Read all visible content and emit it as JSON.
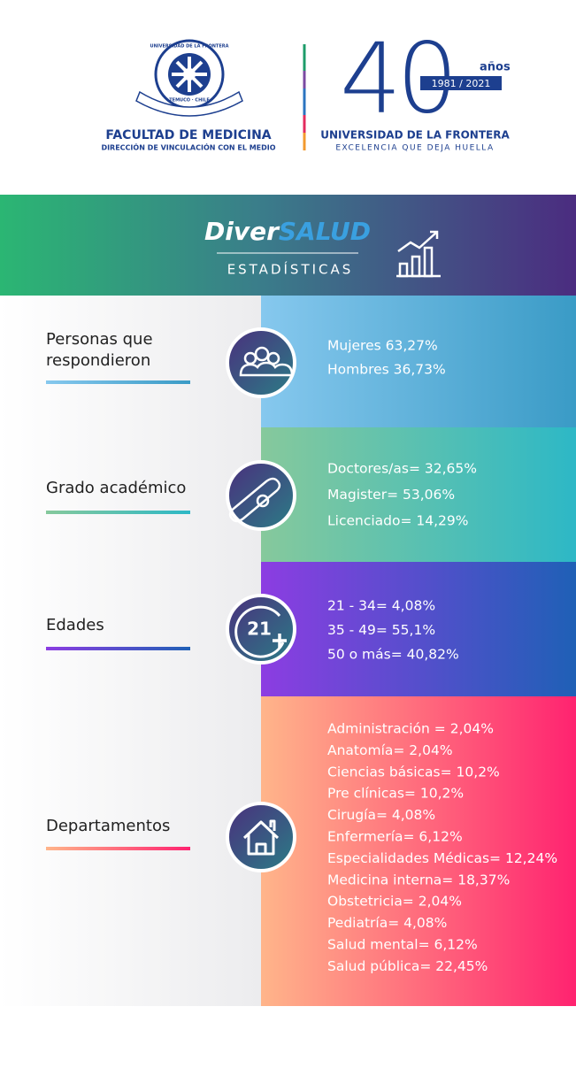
{
  "header": {
    "faculty": "FACULTAD DE MEDICINA",
    "department": "DIRECCIÓN DE VINCULACIÓN CON EL MEDIO",
    "crest_top": "UNIVERSIDAD DE LA FRONTERA",
    "crest_bottom": "TEMUCO · CHILE",
    "anniversary": "40",
    "anniversary_unit": "años",
    "years": "1981 / 2021",
    "university": "UNIVERSIDAD DE LA FRONTERA",
    "motto": "EXCELENCIA QUE DEJA HUELLA"
  },
  "banner": {
    "brand_a": "Diver",
    "brand_b": "SALUD",
    "subtitle": "ESTADÍSTICAS"
  },
  "sections": [
    {
      "label_lines": [
        "Personas que",
        "respondieron"
      ],
      "items": [
        "Mujeres 63,27%",
        "Hombres 36,73%"
      ]
    },
    {
      "label_lines": [
        "Grado académico"
      ],
      "items": [
        "Doctores/as= 32,65%",
        "Magister= 53,06%",
        "Licenciado= 14,29%"
      ]
    },
    {
      "label_lines": [
        "Edades"
      ],
      "icon_text": "21",
      "items": [
        "21 - 34= 4,08%",
        "35 - 49= 55,1%",
        "50 o más= 40,82%"
      ]
    },
    {
      "label_lines": [
        "Departamentos"
      ],
      "items": [
        "Administración = 2,04%",
        "Anatomía= 2,04%",
        "Ciencias básicas= 10,2%",
        "Pre clínicas= 10,2%",
        "Cirugía= 4,08%",
        "Enfermería= 6,12%",
        "Especialidades Médicas= 12,24%",
        "Medicina interna= 18,37%",
        "Obstetricia= 2,04%",
        "Pediatría= 4,08%",
        "Salud mental= 6,12%",
        "Salud pública= 22,45%"
      ]
    }
  ]
}
